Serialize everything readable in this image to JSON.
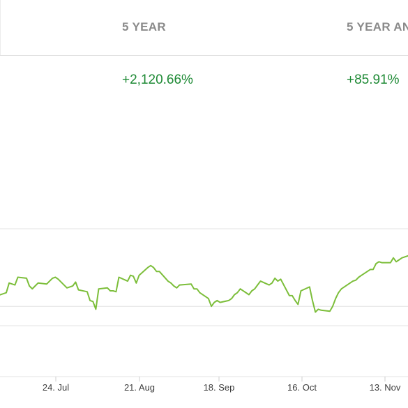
{
  "returns_table": {
    "columns": [
      {
        "header": "5 YEAR",
        "value": "+2,120.66%"
      },
      {
        "header": "5 YEAR AN",
        "value": "+85.91%"
      }
    ]
  },
  "colors": {
    "line": "#7cbe3a",
    "positive": "#1e8a35",
    "header_text": "#8a8a8a",
    "gridline": "#e3e3e3"
  },
  "chart_data": {
    "type": "line",
    "x_tick_labels": [
      "24. Jul",
      "21. Aug",
      "18. Sep",
      "16. Oct",
      "13. Nov"
    ],
    "x": [
      "2018-06-25",
      "2018-06-26",
      "2018-06-27",
      "2018-06-28",
      "2018-06-29",
      "2018-07-02",
      "2018-07-03",
      "2018-07-05",
      "2018-07-06",
      "2018-07-09",
      "2018-07-10",
      "2018-07-11",
      "2018-07-12",
      "2018-07-13",
      "2018-07-16",
      "2018-07-17",
      "2018-07-18",
      "2018-07-19",
      "2018-07-20",
      "2018-07-23",
      "2018-07-24",
      "2018-07-25",
      "2018-07-26",
      "2018-07-27",
      "2018-07-30",
      "2018-07-31",
      "2018-08-01",
      "2018-08-02",
      "2018-08-03",
      "2018-08-06",
      "2018-08-07",
      "2018-08-08",
      "2018-08-09",
      "2018-08-10",
      "2018-08-13",
      "2018-08-14",
      "2018-08-15",
      "2018-08-16",
      "2018-08-17",
      "2018-08-20",
      "2018-08-21",
      "2018-08-22",
      "2018-08-23",
      "2018-08-24",
      "2018-08-27",
      "2018-08-28",
      "2018-08-29",
      "2018-08-30",
      "2018-08-31",
      "2018-09-04",
      "2018-09-05",
      "2018-09-06",
      "2018-09-07",
      "2018-09-10",
      "2018-09-11",
      "2018-09-12",
      "2018-09-13",
      "2018-09-14",
      "2018-09-17",
      "2018-09-18",
      "2018-09-19",
      "2018-09-20",
      "2018-09-21",
      "2018-09-24",
      "2018-09-25",
      "2018-09-26",
      "2018-09-27",
      "2018-09-28",
      "2018-10-01",
      "2018-10-02",
      "2018-10-03",
      "2018-10-04",
      "2018-10-05",
      "2018-10-08",
      "2018-10-09",
      "2018-10-10",
      "2018-10-11",
      "2018-10-12",
      "2018-10-15",
      "2018-10-16",
      "2018-10-17",
      "2018-10-18",
      "2018-10-19",
      "2018-10-22",
      "2018-10-23",
      "2018-10-24",
      "2018-10-25",
      "2018-10-26",
      "2018-10-29",
      "2018-10-30",
      "2018-10-31",
      "2018-11-01",
      "2018-11-02",
      "2018-11-05",
      "2018-11-06",
      "2018-11-07",
      "2018-11-08",
      "2018-11-09",
      "2018-11-12",
      "2018-11-13",
      "2018-11-14",
      "2018-11-15",
      "2018-11-16",
      "2018-11-19",
      "2018-11-20"
    ],
    "y": [
      1.2,
      1.1,
      1.0,
      1.2,
      1.1,
      1.4,
      2.4,
      2.2,
      3.0,
      2.9,
      2.1,
      1.8,
      2.1,
      2.4,
      2.3,
      2.6,
      2.9,
      3.0,
      2.8,
      1.9,
      2.0,
      2.1,
      2.5,
      1.7,
      1.5,
      0.6,
      0.5,
      -0.3,
      1.8,
      1.9,
      1.6,
      1.6,
      1.5,
      3.0,
      2.6,
      3.2,
      3.1,
      2.4,
      3.2,
      4.0,
      4.2,
      4.0,
      3.6,
      3.6,
      2.6,
      2.4,
      2.1,
      1.9,
      2.2,
      2.3,
      1.8,
      1.8,
      1.4,
      0.8,
      0.0,
      0.4,
      0.6,
      0.4,
      0.6,
      0.8,
      1.2,
      1.4,
      1.8,
      1.2,
      1.6,
      1.8,
      2.2,
      2.6,
      2.2,
      2.4,
      2.9,
      2.6,
      2.8,
      1.1,
      1.1,
      0.6,
      0.2,
      1.6,
      2.0,
      0.6,
      -0.6,
      -0.3,
      -0.4,
      -0.5,
      0.0,
      0.8,
      1.4,
      1.8,
      2.4,
      2.6,
      2.7,
      3.0,
      3.2,
      3.8,
      3.8,
      4.4,
      4.6,
      4.5,
      4.5,
      5.0,
      4.6,
      4.8,
      5.0,
      5.3,
      5.2
    ],
    "y_gridlines": [
      -2,
      0,
      8
    ],
    "ylim": [
      -2,
      8
    ],
    "grid": true,
    "legend": "none"
  }
}
